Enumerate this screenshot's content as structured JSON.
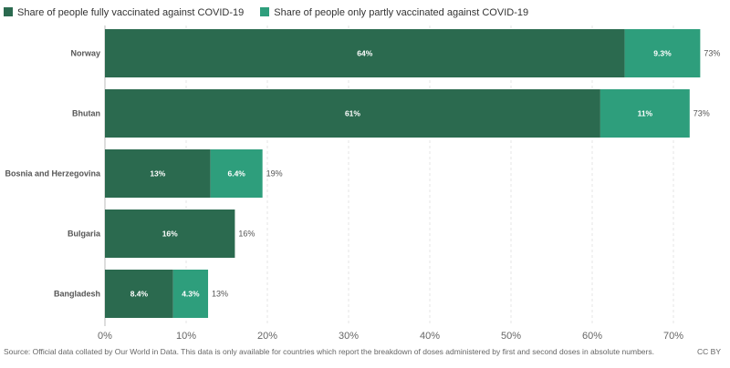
{
  "chart_data": {
    "type": "bar",
    "orientation": "horizontal",
    "stacked": true,
    "categories": [
      "Norway",
      "Bhutan",
      "Bosnia and Herzegovina",
      "Bulgaria",
      "Bangladesh"
    ],
    "series": [
      {
        "name": "Share of people fully vaccinated against COVID-19",
        "color": "#2b6a4f",
        "values": [
          64,
          61,
          13,
          16,
          8.4
        ],
        "labels": [
          "64%",
          "61%",
          "13%",
          "16%",
          "8.4%"
        ]
      },
      {
        "name": "Share of people only partly vaccinated against COVID-19",
        "color": "#2e9e7c",
        "values": [
          9.3,
          11,
          6.4,
          0,
          4.3
        ],
        "labels": [
          "9.3%",
          "11%",
          "6.4%",
          "",
          "4.3%"
        ]
      }
    ],
    "totals": [
      "73%",
      "73%",
      "19%",
      "16%",
      "13%"
    ],
    "xlim": [
      0,
      70
    ],
    "xticks": [
      "0%",
      "10%",
      "20%",
      "30%",
      "40%",
      "50%",
      "60%",
      "70%"
    ],
    "grid": true,
    "legend": "top-left"
  },
  "footer": {
    "source": "Source: Official data collated by Our World in Data. This data is only available for countries which report the breakdown of doses administered by first and second doses in absolute numbers.",
    "license": "CC BY"
  }
}
